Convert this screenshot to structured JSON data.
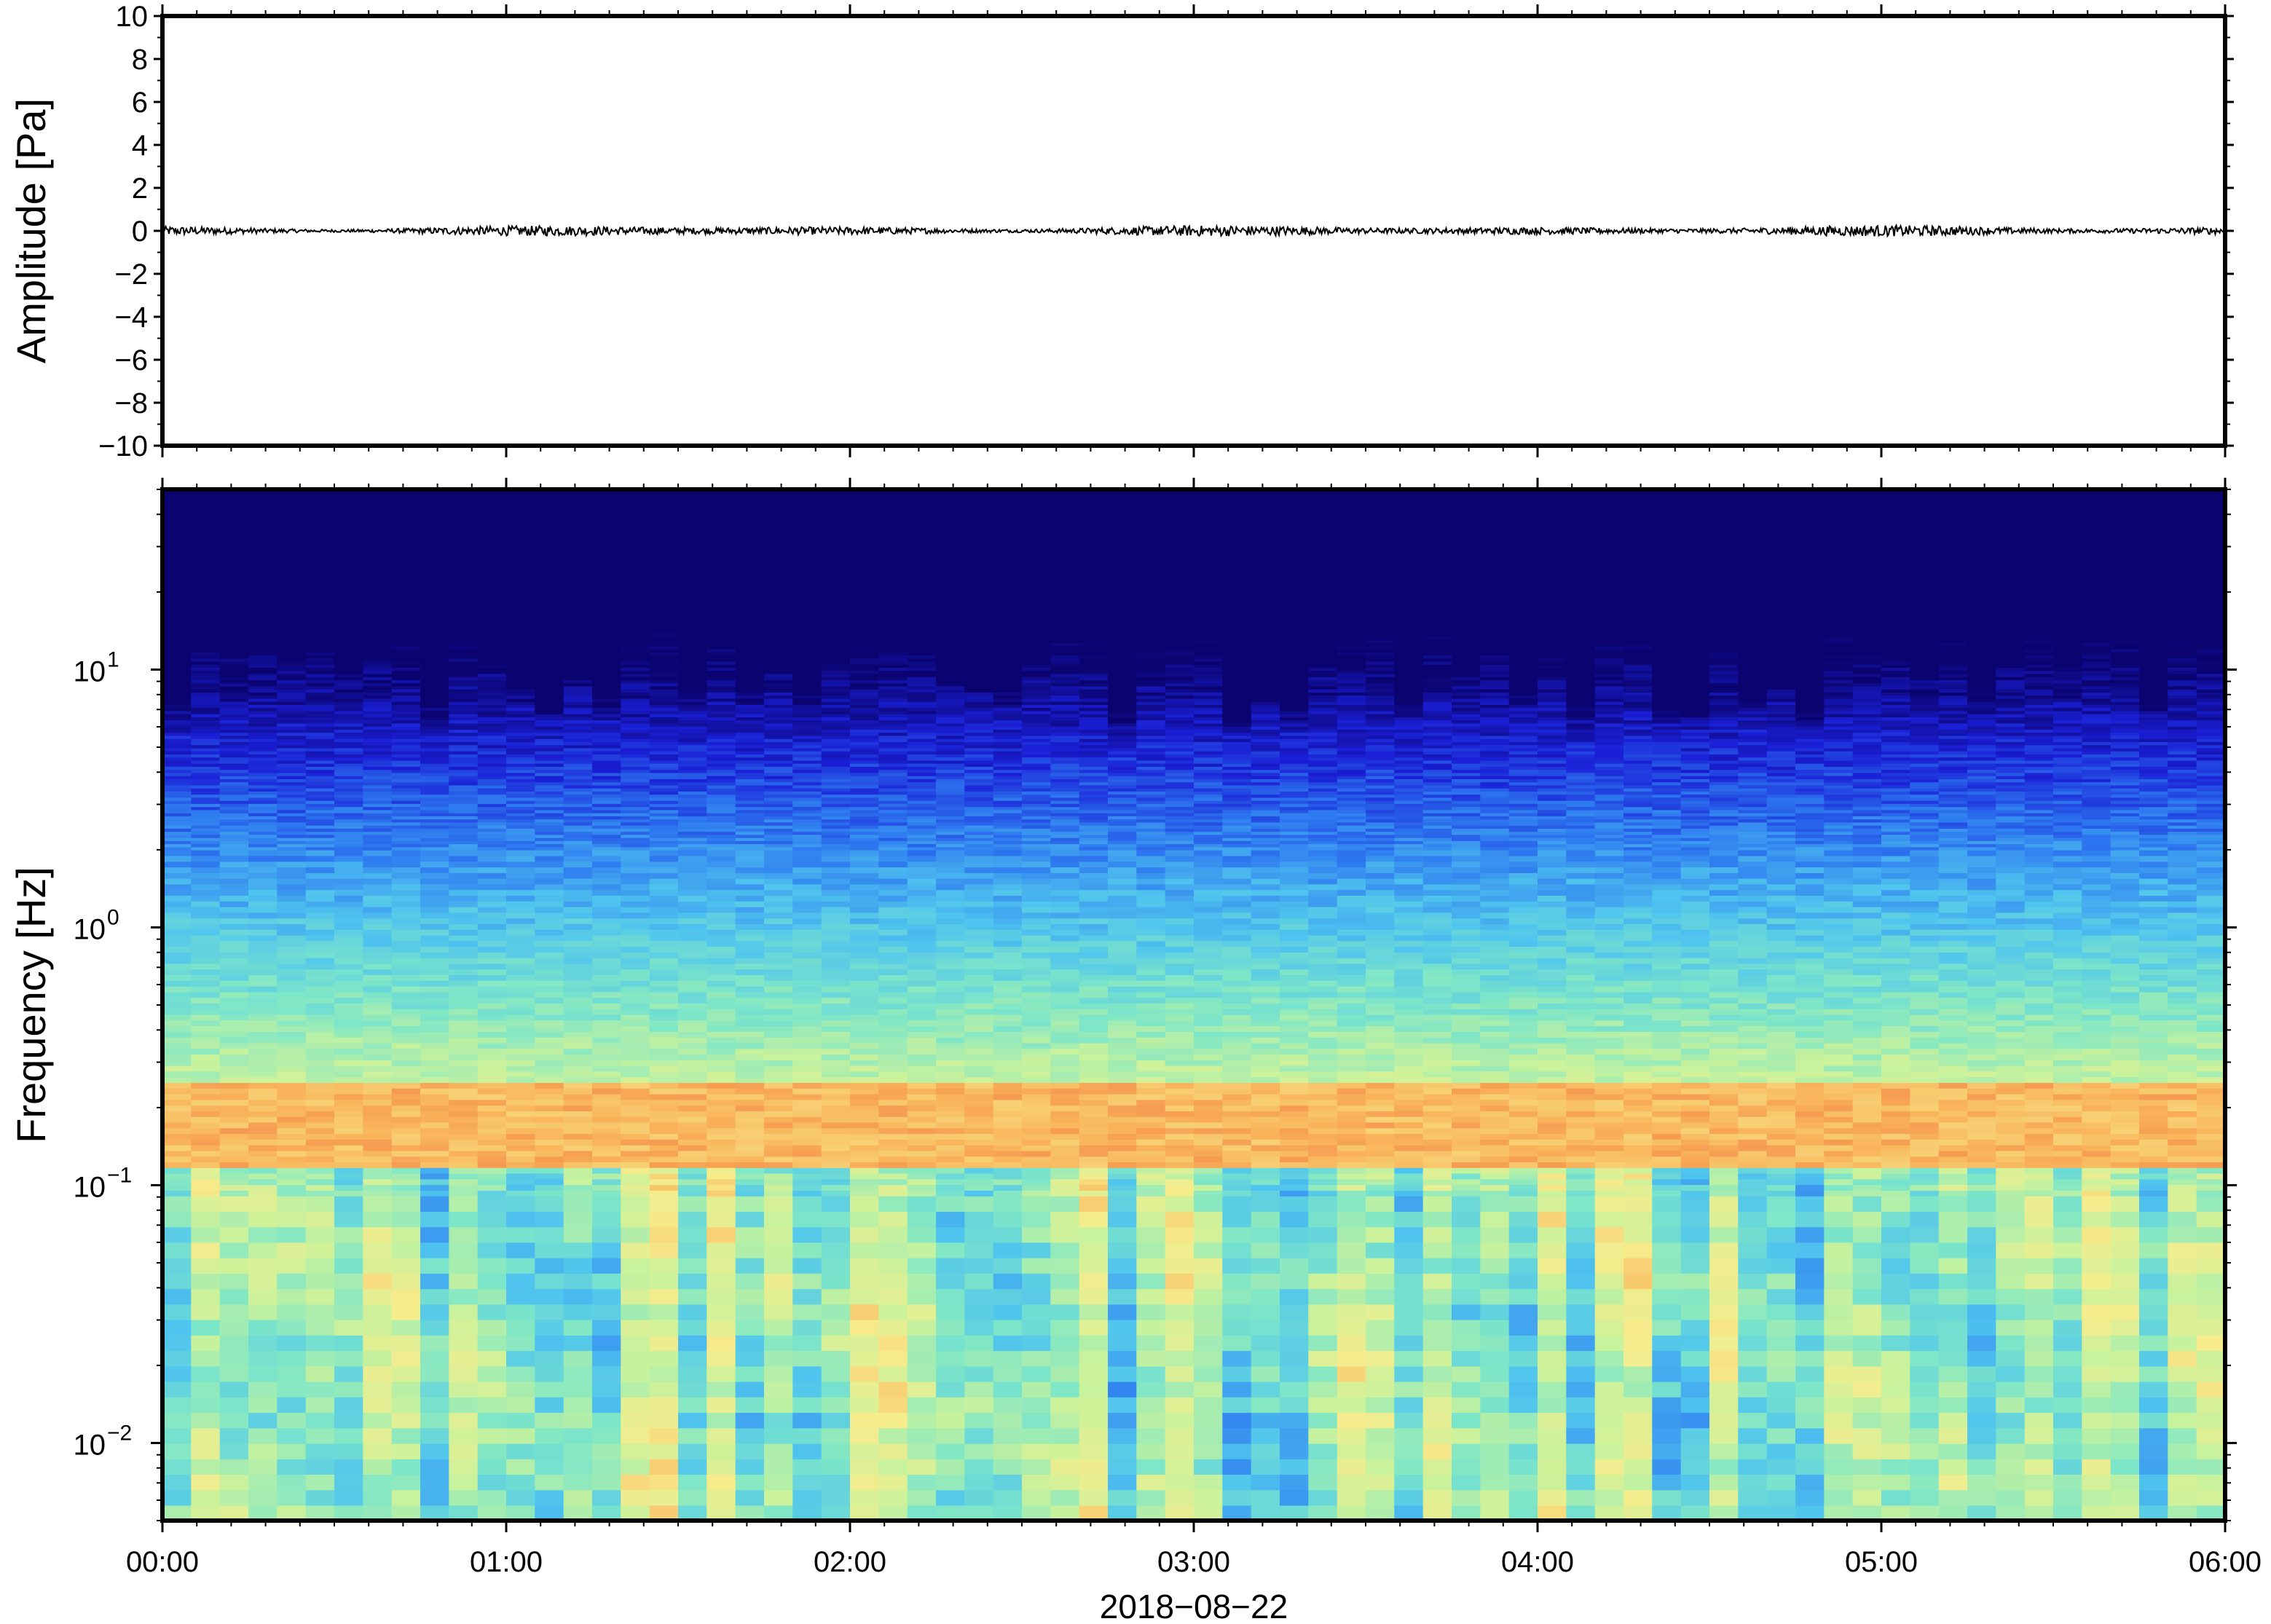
{
  "chart_data": [
    {
      "type": "line",
      "ylabel": "Amplitude [Pa]",
      "ylim": [
        -10,
        10
      ],
      "yticks": [
        "10",
        "8",
        "6",
        "4",
        "2",
        "0",
        "−2",
        "−4",
        "−6",
        "−8",
        "−10"
      ],
      "xlim": [
        "00:00",
        "06:00"
      ],
      "series": [
        {
          "description_values": "near-zero noise trace",
          "approx_min": -0.2,
          "approx_max": 0.3,
          "mean": 0
        }
      ],
      "grid": false
    },
    {
      "type": "heatmap",
      "ylabel": "Frequency [Hz]",
      "yscale": "log",
      "ylim": [
        0.005,
        50
      ],
      "yticks": [
        {
          "value": 10,
          "base": "10",
          "exp": "1"
        },
        {
          "value": 1,
          "base": "10",
          "exp": "0"
        },
        {
          "value": 0.1,
          "base": "10",
          "exp": "−1"
        },
        {
          "value": 0.01,
          "base": "10",
          "exp": "−2"
        }
      ],
      "xlabel": "2018−08−22",
      "xticks": [
        "00:00",
        "01:00",
        "02:00",
        "03:00",
        "04:00",
        "05:00",
        "06:00"
      ],
      "colormap": [
        "#0b0470",
        "#1a1fd6",
        "#2e7bf0",
        "#4fc4ee",
        "#7de6c8",
        "#c9f29c",
        "#f6ec8c",
        "#f9b35a",
        "#ec5e38"
      ],
      "features": {
        "microbarom_band_hz": [
          0.12,
          0.25
        ],
        "microbarom_color": "#f4843e",
        "high_freq_level": "low"
      },
      "grid": false
    }
  ]
}
